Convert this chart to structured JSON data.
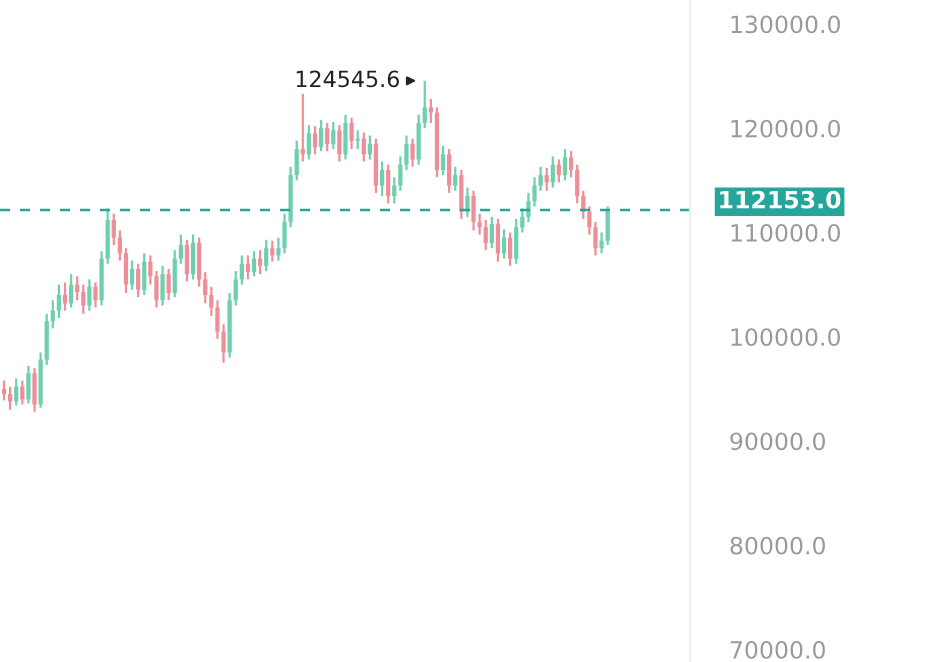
{
  "chart_data": {
    "type": "candlestick",
    "categories": [
      null,
      null,
      null,
      null,
      null,
      null,
      null,
      null,
      null,
      null,
      null,
      null,
      null,
      null,
      null,
      null,
      null,
      null,
      null,
      null,
      null,
      null,
      null,
      null,
      null,
      null,
      null,
      null,
      null,
      null,
      null,
      null,
      null,
      null,
      null,
      null,
      null,
      null,
      null,
      null,
      null,
      null,
      null,
      null,
      null,
      null,
      null,
      null,
      null,
      null,
      null,
      null,
      null,
      null,
      null,
      null,
      null,
      null,
      null,
      null,
      null,
      null,
      null,
      null,
      null,
      null,
      null,
      null,
      null,
      null,
      null,
      null,
      null,
      null,
      null,
      null,
      null,
      null,
      null,
      null,
      null,
      null,
      null,
      null,
      null,
      null,
      null,
      null,
      null,
      null,
      null,
      null,
      null,
      null,
      null,
      null,
      null,
      null,
      null,
      null
    ],
    "ohlc": [
      [
        95000,
        95800,
        93900,
        94500
      ],
      [
        94500,
        95200,
        93000,
        93800
      ],
      [
        93800,
        96000,
        93400,
        95200
      ],
      [
        95200,
        95800,
        93500,
        94000
      ],
      [
        94000,
        97200,
        93600,
        96500
      ],
      [
        96500,
        97000,
        92800,
        93500
      ],
      [
        93500,
        98500,
        93200,
        97800
      ],
      [
        97800,
        102200,
        97300,
        101500
      ],
      [
        101500,
        103500,
        100800,
        102500
      ],
      [
        102500,
        105000,
        101800,
        104000
      ],
      [
        104000,
        105200,
        102500,
        103200
      ],
      [
        103200,
        106000,
        102800,
        105000
      ],
      [
        105000,
        105800,
        103500,
        104300
      ],
      [
        104300,
        105000,
        102200,
        103000
      ],
      [
        103000,
        105500,
        102500,
        104800
      ],
      [
        104800,
        105200,
        102800,
        103500
      ],
      [
        103500,
        108200,
        103000,
        107500
      ],
      [
        107500,
        112300,
        107000,
        111200
      ],
      [
        111200,
        111800,
        108800,
        109500
      ],
      [
        109500,
        110200,
        107300,
        108000
      ],
      [
        108000,
        108500,
        104200,
        105000
      ],
      [
        105000,
        107300,
        104500,
        106500
      ],
      [
        106500,
        107000,
        103800,
        104500
      ],
      [
        104500,
        108000,
        104000,
        107200
      ],
      [
        107200,
        107800,
        105000,
        105800
      ],
      [
        105800,
        106300,
        102800,
        103500
      ],
      [
        103500,
        106800,
        103000,
        106000
      ],
      [
        106000,
        106500,
        103500,
        104200
      ],
      [
        104200,
        108300,
        103800,
        107500
      ],
      [
        107500,
        109800,
        107000,
        108800
      ],
      [
        108800,
        109300,
        105300,
        106000
      ],
      [
        106000,
        109800,
        105500,
        109000
      ],
      [
        109000,
        109500,
        104800,
        105500
      ],
      [
        105500,
        106200,
        103200,
        104000
      ],
      [
        104000,
        104800,
        102000,
        102800
      ],
      [
        102800,
        103500,
        99800,
        100500
      ],
      [
        100500,
        101200,
        97500,
        98500
      ],
      [
        98500,
        104200,
        98000,
        103500
      ],
      [
        103500,
        106300,
        103000,
        105500
      ],
      [
        105500,
        107800,
        105000,
        107000
      ],
      [
        107000,
        107800,
        105500,
        106200
      ],
      [
        106200,
        108200,
        105800,
        107500
      ],
      [
        107500,
        108300,
        106000,
        106800
      ],
      [
        106800,
        109300,
        106300,
        108500
      ],
      [
        108500,
        109200,
        107200,
        107800
      ],
      [
        107800,
        109500,
        107300,
        108500
      ],
      [
        108500,
        111800,
        108000,
        111000
      ],
      [
        111000,
        116300,
        110500,
        115500
      ],
      [
        115500,
        118800,
        115000,
        118000
      ],
      [
        118000,
        123300,
        116800,
        117500
      ],
      [
        117500,
        120300,
        117000,
        119500
      ],
      [
        119500,
        120200,
        117500,
        118200
      ],
      [
        118200,
        120800,
        117800,
        120000
      ],
      [
        120000,
        120500,
        117800,
        118500
      ],
      [
        118500,
        120600,
        118000,
        119800
      ],
      [
        119800,
        120300,
        116800,
        117500
      ],
      [
        117500,
        121300,
        117000,
        120500
      ],
      [
        120500,
        121000,
        118000,
        118800
      ],
      [
        118800,
        119800,
        118000,
        119000
      ],
      [
        119000,
        119600,
        116800,
        117500
      ],
      [
        117500,
        119300,
        117000,
        118500
      ],
      [
        118500,
        119000,
        113800,
        114500
      ],
      [
        114500,
        116800,
        113500,
        116000
      ],
      [
        116000,
        116500,
        112800,
        113500
      ],
      [
        113500,
        115300,
        112800,
        114500
      ],
      [
        114500,
        117300,
        114000,
        116500
      ],
      [
        116500,
        119300,
        116000,
        118500
      ],
      [
        118500,
        119000,
        116300,
        117000
      ],
      [
        117000,
        121300,
        116500,
        120500
      ],
      [
        120500,
        124545.6,
        120000,
        122000
      ],
      [
        122000,
        122800,
        120500,
        121500
      ],
      [
        121500,
        122000,
        115300,
        116000
      ],
      [
        116000,
        118300,
        115500,
        117500
      ],
      [
        117500,
        118000,
        113800,
        114500
      ],
      [
        114500,
        116300,
        114000,
        115500
      ],
      [
        115500,
        116000,
        111300,
        112000
      ],
      [
        112000,
        114300,
        111500,
        113500
      ],
      [
        113500,
        114000,
        110200,
        111000
      ],
      [
        111000,
        111800,
        109800,
        110500
      ],
      [
        110500,
        111200,
        108300,
        109000
      ],
      [
        109000,
        111500,
        108500,
        110800
      ],
      [
        110800,
        111300,
        107200,
        108000
      ],
      [
        108000,
        110300,
        107500,
        109500
      ],
      [
        109500,
        110000,
        106800,
        107500
      ],
      [
        107500,
        111300,
        107000,
        110500
      ],
      [
        110500,
        112300,
        110000,
        111500
      ],
      [
        111500,
        113800,
        111000,
        113000
      ],
      [
        113000,
        115300,
        112500,
        114500
      ],
      [
        114500,
        116300,
        114000,
        115500
      ],
      [
        115500,
        116200,
        114000,
        114800
      ],
      [
        114800,
        117300,
        114300,
        116500
      ],
      [
        116500,
        117000,
        114800,
        115500
      ],
      [
        115500,
        118000,
        115000,
        117200
      ],
      [
        117200,
        117800,
        115300,
        116000
      ],
      [
        116000,
        116500,
        112800,
        113500
      ],
      [
        113500,
        114000,
        111300,
        112000
      ],
      [
        112000,
        112500,
        109800,
        110500
      ],
      [
        110500,
        111000,
        107800,
        108500
      ],
      [
        108500,
        110000,
        108000,
        109200
      ],
      [
        109200,
        112500,
        108800,
        112153
      ]
    ],
    "ylim": [
      68800,
      132300
    ],
    "yticks": [
      {
        "value": 70000,
        "label": "70000.0"
      },
      {
        "value": 80000,
        "label": "80000.0"
      },
      {
        "value": 90000,
        "label": "90000.0"
      },
      {
        "value": 100000,
        "label": "100000.0"
      },
      {
        "value": 110000,
        "label": "110000.0"
      },
      {
        "value": 120000,
        "label": "120000.0"
      },
      {
        "value": 130000,
        "label": "130000.0"
      }
    ],
    "tick_labels": "y",
    "grid": false,
    "ref_lines": [
      {
        "axis": "y",
        "value": 112153,
        "label": "112153.0",
        "color": "#26a69a",
        "line_style": "dashed"
      }
    ],
    "annotations": [
      "124545.6"
    ]
  }
}
